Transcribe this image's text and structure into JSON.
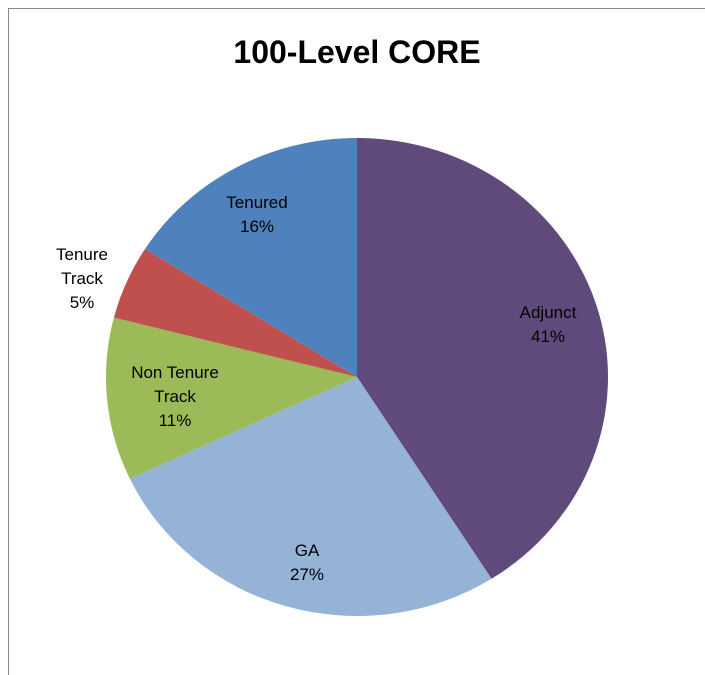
{
  "chart_data": {
    "type": "pie",
    "title": "100-Level CORE",
    "categories": [
      "Adjunct",
      "GA",
      "Non Tenure Track",
      "Tenure Track",
      "Tenured"
    ],
    "values": [
      41,
      27,
      11,
      5,
      16
    ],
    "value_labels": [
      "41%",
      "27%",
      "11%",
      "5%",
      "16%"
    ],
    "colors": [
      "#604a7b",
      "#95b3d7",
      "#9bbb59",
      "#c0504d",
      "#4f81bd"
    ]
  }
}
